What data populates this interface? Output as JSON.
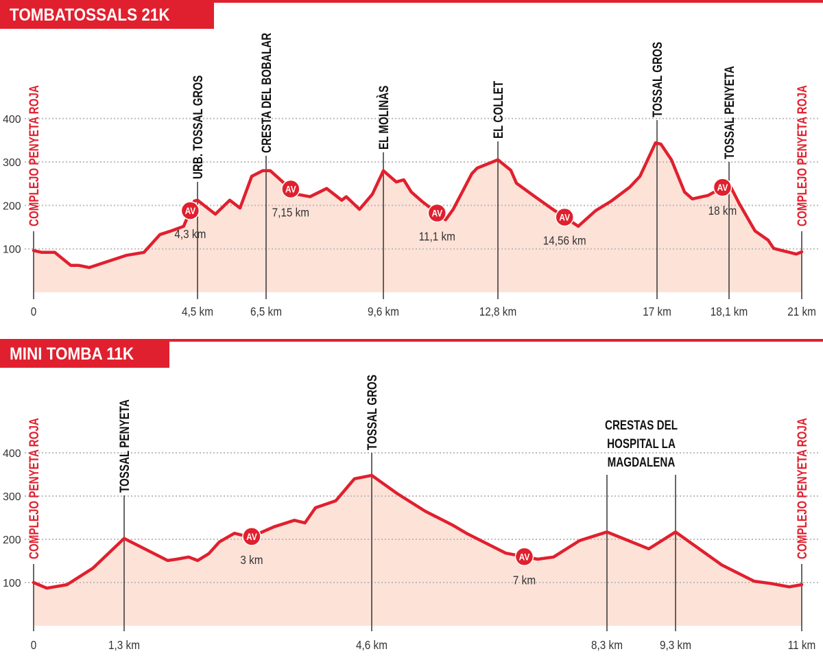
{
  "colors": {
    "accent": "#e0202e",
    "fill": "#fde2d8",
    "grid": "#bbbbbb",
    "text": "#333333"
  },
  "chart_data": [
    {
      "type": "area",
      "title": "TOMBATOSSALS 21K",
      "x_unit": "km",
      "yticks": [
        "100",
        "200",
        "300",
        "400"
      ],
      "ytick_values": [
        100,
        200,
        300,
        400
      ],
      "grid": "dotted-horizontal",
      "xticks": [
        {
          "km": 0,
          "label": "0"
        },
        {
          "km": 4.5,
          "label": "4,5 km"
        },
        {
          "km": 6.5,
          "label": "6,5 km"
        },
        {
          "km": 9.6,
          "label": "9,6 km"
        },
        {
          "km": 12.8,
          "label": "12,8 km"
        },
        {
          "km": 17,
          "label": "17 km"
        },
        {
          "km": 18.1,
          "label": "18,1 km"
        },
        {
          "km": 21,
          "label": "21 km"
        }
      ],
      "start_label": "COMPLEJO PENYETA ROJA",
      "end_label": "COMPLEJO PENYETA ROJA",
      "waypoints": [
        {
          "km": 4.5,
          "name": "URB. TOSSAL GROS"
        },
        {
          "km": 6.5,
          "name": "CRESTA DEL BOBALAR"
        },
        {
          "km": 9.6,
          "name": "EL MOLINÀS"
        },
        {
          "km": 12.8,
          "name": "EL COLLET"
        },
        {
          "km": 17,
          "name": "TOSSAL GROS"
        },
        {
          "km": 18.1,
          "name": "TOSSAL PENYETA"
        }
      ],
      "aid_stations": [
        {
          "km": 4.3,
          "badge": "AV",
          "label": "4,3 km"
        },
        {
          "km": 7.15,
          "badge": "AV",
          "label": "7,15 km"
        },
        {
          "km": 11.1,
          "badge": "AV",
          "label": "11,1 km"
        },
        {
          "km": 14.56,
          "badge": "AV",
          "label": "14,56 km"
        },
        {
          "km": 18,
          "badge": "AV",
          "label": "18 km"
        }
      ],
      "profile": [
        [
          0,
          96
        ],
        [
          0.23,
          92
        ],
        [
          0.58,
          92
        ],
        [
          1.02,
          62
        ],
        [
          1.24,
          62
        ],
        [
          1.53,
          57
        ],
        [
          2.54,
          85
        ],
        [
          3.03,
          92
        ],
        [
          3.47,
          133
        ],
        [
          3.77,
          141
        ],
        [
          4.12,
          152
        ],
        [
          4.41,
          210
        ],
        [
          4.5,
          212
        ],
        [
          5.02,
          180
        ],
        [
          5.44,
          212
        ],
        [
          5.74,
          194
        ],
        [
          6.08,
          267
        ],
        [
          6.4,
          280
        ],
        [
          6.61,
          280
        ],
        [
          7.3,
          226
        ],
        [
          7.66,
          220
        ],
        [
          8.1,
          239
        ],
        [
          8.5,
          212
        ],
        [
          8.62,
          220
        ],
        [
          8.97,
          191
        ],
        [
          9.31,
          226
        ],
        [
          9.6,
          280
        ],
        [
          9.96,
          254
        ],
        [
          10.17,
          259
        ],
        [
          10.38,
          231
        ],
        [
          10.67,
          210
        ],
        [
          11.34,
          167
        ],
        [
          11.55,
          191
        ],
        [
          12.07,
          273
        ],
        [
          12.22,
          286
        ],
        [
          12.8,
          305
        ],
        [
          13.14,
          281
        ],
        [
          13.29,
          251
        ],
        [
          13.78,
          220
        ],
        [
          14.2,
          194
        ],
        [
          14.92,
          152
        ],
        [
          15.38,
          188
        ],
        [
          15.79,
          210
        ],
        [
          16.28,
          242
        ],
        [
          16.55,
          267
        ],
        [
          16.96,
          344
        ],
        [
          17.06,
          341
        ],
        [
          17.22,
          305
        ],
        [
          17.42,
          231
        ],
        [
          17.54,
          215
        ],
        [
          17.78,
          223
        ],
        [
          18.1,
          250
        ],
        [
          18.51,
          204
        ],
        [
          19.14,
          141
        ],
        [
          19.66,
          120
        ],
        [
          19.88,
          101
        ],
        [
          20.51,
          92
        ],
        [
          20.78,
          88
        ],
        [
          21,
          93
        ]
      ]
    },
    {
      "type": "area",
      "title": "MINI TOMBA 11K",
      "x_unit": "km",
      "yticks": [
        "100",
        "200",
        "300",
        "400"
      ],
      "ytick_values": [
        100,
        200,
        300,
        400
      ],
      "grid": "dotted-horizontal",
      "xticks": [
        {
          "km": 0,
          "label": "0"
        },
        {
          "km": 1.3,
          "label": "1,3 km"
        },
        {
          "km": 4.6,
          "label": "4,6 km"
        },
        {
          "km": 8.3,
          "label": "8,3 km"
        },
        {
          "km": 9.3,
          "label": "9,3 km"
        },
        {
          "km": 11,
          "label": "11 km"
        }
      ],
      "start_label": "COMPLEJO PENYETA ROJA",
      "end_label": "COMPLEJO PENYETA ROJA",
      "waypoints": [
        {
          "km": 1.3,
          "name": "TOSSAL PENYETA"
        },
        {
          "km": 4.6,
          "name": "TOSSAL GROS"
        },
        {
          "km": 8.3,
          "name": ""
        },
        {
          "km": 9.3,
          "name": ""
        }
      ],
      "ridge_label": {
        "from_km": 8.3,
        "to_km": 9.3,
        "lines": [
          "CRESTAS DEL",
          "HOSPITAL LA",
          "MAGDALENA"
        ]
      },
      "aid_stations": [
        {
          "km": 3,
          "badge": "AV",
          "label": "3 km"
        },
        {
          "km": 7,
          "badge": "AV",
          "label": "7 km"
        }
      ],
      "profile": [
        [
          0,
          100
        ],
        [
          0.19,
          87
        ],
        [
          0.48,
          95
        ],
        [
          0.85,
          133
        ],
        [
          1.3,
          202
        ],
        [
          1.88,
          151
        ],
        [
          2.0,
          154
        ],
        [
          2.16,
          159
        ],
        [
          2.28,
          151
        ],
        [
          2.43,
          167
        ],
        [
          2.57,
          194
        ],
        [
          2.77,
          214
        ],
        [
          2.98,
          205
        ],
        [
          3.3,
          229
        ],
        [
          3.57,
          244
        ],
        [
          3.71,
          238
        ],
        [
          3.85,
          273
        ],
        [
          4.12,
          289
        ],
        [
          4.37,
          340
        ],
        [
          4.6,
          348
        ],
        [
          5.01,
          305
        ],
        [
          5.44,
          265
        ],
        [
          5.87,
          233
        ],
        [
          6.09,
          214
        ],
        [
          6.71,
          168
        ],
        [
          7.21,
          154
        ],
        [
          7.46,
          159
        ],
        [
          7.87,
          197
        ],
        [
          8.3,
          217
        ],
        [
          8.91,
          178
        ],
        [
          9.3,
          217
        ],
        [
          9.92,
          141
        ],
        [
          10.36,
          103
        ],
        [
          10.58,
          98
        ],
        [
          10.83,
          90
        ],
        [
          11,
          95
        ]
      ]
    }
  ]
}
